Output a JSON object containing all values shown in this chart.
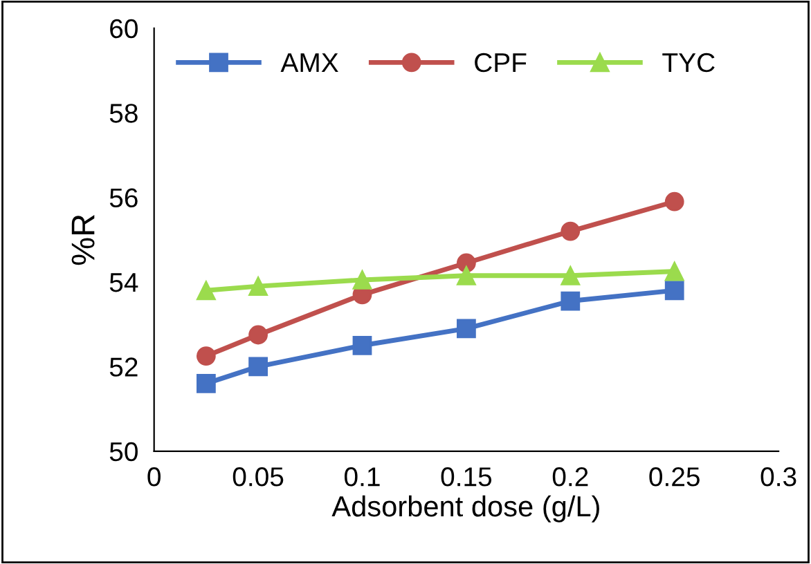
{
  "chart_data": {
    "type": "line",
    "xlabel": "Adsorbent dose (g/L)",
    "ylabel": "%R",
    "x": [
      0.025,
      0.05,
      0.1,
      0.15,
      0.2,
      0.25
    ],
    "series": [
      {
        "name": "AMX",
        "color": "#4472c4",
        "marker": "square",
        "values": [
          51.6,
          52.0,
          52.5,
          52.9,
          53.55,
          53.8
        ]
      },
      {
        "name": "CPF",
        "color": "#c0504d",
        "marker": "circle",
        "values": [
          52.25,
          52.75,
          53.7,
          54.45,
          55.2,
          55.9
        ]
      },
      {
        "name": "TYC",
        "color": "#9bdb4d",
        "marker": "triangle",
        "values": [
          53.8,
          53.9,
          54.05,
          54.15,
          54.15,
          54.25
        ]
      }
    ],
    "xlim": [
      0,
      0.3
    ],
    "xticks": [
      0,
      0.05,
      0.1,
      0.15,
      0.2,
      0.25,
      0.3
    ],
    "ylim": [
      50,
      60
    ],
    "yticks": [
      50,
      52,
      54,
      56,
      58,
      60
    ],
    "grid": false,
    "legend": "top left"
  }
}
